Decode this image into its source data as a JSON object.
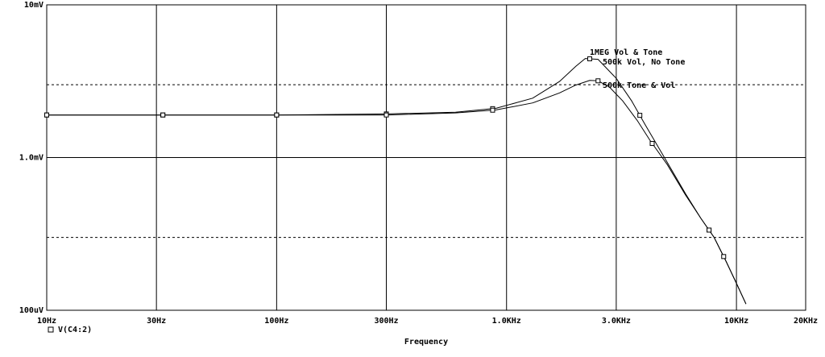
{
  "chart_data": {
    "type": "line",
    "xlabel": "Frequency",
    "x_scale": "log",
    "y_scale": "log",
    "xlim_hz": [
      10,
      20000
    ],
    "ylim_v": [
      0.0001,
      0.01
    ],
    "grid": true,
    "x_ticks": [
      {
        "value": 10,
        "label": "10Hz"
      },
      {
        "value": 30,
        "label": "30Hz"
      },
      {
        "value": 100,
        "label": "100Hz"
      },
      {
        "value": 300,
        "label": "300Hz"
      },
      {
        "value": 1000,
        "label": "1.0KHz"
      },
      {
        "value": 3000,
        "label": "3.0KHz"
      },
      {
        "value": 10000,
        "label": "10KHz"
      },
      {
        "value": 20000,
        "label": "20KHz"
      }
    ],
    "y_ticks": [
      {
        "value": 0.01,
        "label": "10mV"
      },
      {
        "value": 0.001,
        "label": "1.0mV"
      },
      {
        "value": 0.0001,
        "label": "100uV"
      }
    ],
    "y_dashed_grid": [
      0.003,
      0.0003
    ],
    "legend": {
      "marker": "square",
      "label": "V(C4:2)",
      "placement": "bottom-left"
    },
    "annotations": [
      "1MEG Vol & Tone",
      "500k Vol, No Tone",
      "500k Tone & Vol"
    ],
    "series": [
      {
        "x": [
          10,
          30,
          100,
          300,
          600,
          900,
          1300,
          1700,
          2000,
          2200,
          2500,
          3000,
          3500,
          4000,
          5000,
          6000,
          7000,
          8000,
          9000,
          10000,
          11000
        ],
        "y": [
          0.0019,
          0.0019,
          0.0019,
          0.00193,
          0.00198,
          0.0021,
          0.00245,
          0.00315,
          0.00395,
          0.00445,
          0.0044,
          0.0033,
          0.00235,
          0.00165,
          0.00093,
          0.00058,
          0.0004,
          0.0003,
          0.00021,
          0.00015,
          0.00011
        ],
        "markers_x": [
          10,
          32,
          100,
          300,
          870,
          2300,
          3800,
          7600
        ]
      },
      {
        "x": [
          10,
          30,
          100,
          300,
          600,
          900,
          1300,
          1700,
          2000,
          2300,
          2500,
          2800,
          3200,
          3700,
          4200,
          5000,
          6000,
          7000,
          8000,
          9000,
          10000,
          11000
        ],
        "y": [
          0.0019,
          0.0019,
          0.0019,
          0.0019,
          0.00196,
          0.00205,
          0.00228,
          0.00265,
          0.00298,
          0.0032,
          0.00318,
          0.0029,
          0.00235,
          0.00175,
          0.0013,
          0.0009,
          0.00057,
          0.0004,
          0.0003,
          0.00021,
          0.00015,
          0.00011
        ],
        "markers_x": [
          10,
          32,
          100,
          300,
          870,
          2500,
          4300,
          7600,
          8800
        ]
      }
    ]
  },
  "styles": {
    "line_color": "#000000",
    "grid_color": "#000000",
    "background": "#ffffff"
  }
}
